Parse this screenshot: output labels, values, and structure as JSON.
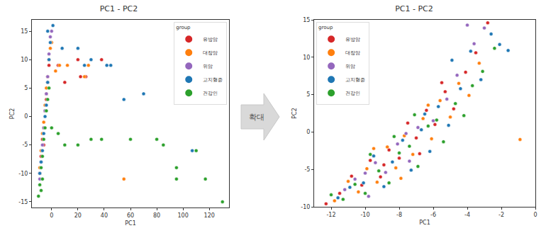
{
  "chart_data": [
    {
      "type": "scatter",
      "title": "PC1 - PC2",
      "x_label": "PC1",
      "y_label": "PC2",
      "legend_title": "group",
      "legend": "upper right",
      "grid": false,
      "marker": "circle",
      "xlim": [
        -15,
        135
      ],
      "xticks": [
        0,
        20,
        40,
        60,
        80,
        100,
        120
      ],
      "ylim": [
        -16,
        17
      ],
      "yticks": [
        -15,
        -10,
        -5,
        0,
        5,
        10,
        15
      ],
      "series": [
        {
          "name": "유방암",
          "color": "#d62728",
          "x": [
            -9,
            -8,
            -7,
            -6,
            -5,
            -4,
            -3,
            -2,
            -6,
            -4,
            5,
            10,
            20,
            38,
            22,
            26
          ],
          "y": [
            -10,
            -7,
            -4,
            -2,
            1,
            3,
            6,
            9,
            -5,
            4,
            9,
            6,
            10,
            10,
            7,
            7
          ]
        },
        {
          "name": "대장암",
          "color": "#ff7f0e",
          "x": [
            -9,
            -8,
            -7,
            -6,
            -5,
            -4,
            -3,
            -2,
            -1,
            0,
            3,
            6,
            12,
            25,
            28,
            55
          ],
          "y": [
            -9,
            -6,
            -3,
            -1,
            2,
            5,
            7,
            10,
            12,
            13,
            8,
            9,
            9,
            7,
            9,
            -11
          ]
        },
        {
          "name": "위암",
          "color": "#9467bd",
          "x": [
            -9,
            -8,
            -7,
            -6,
            -5,
            -4,
            -3,
            -2,
            -1,
            0
          ],
          "y": [
            -11,
            -8,
            -5,
            -2,
            1,
            4,
            7,
            11,
            14,
            15
          ]
        },
        {
          "name": "고지혈증",
          "color": "#1f77b4",
          "x": [
            -9,
            -8,
            -7,
            -6,
            -5,
            -4,
            -3,
            -2,
            -1,
            1,
            8,
            20,
            25,
            30,
            42,
            45,
            55,
            70,
            107,
            -3
          ],
          "y": [
            -10,
            -8,
            -6,
            -3,
            0,
            2,
            6,
            10,
            13,
            16,
            12,
            12,
            9,
            10,
            9,
            9,
            3,
            4,
            -6,
            15
          ]
        },
        {
          "name": "건강인",
          "color": "#2ca02c",
          "x": [
            -10,
            -9,
            -8,
            -7,
            -6,
            -5,
            -4,
            -3,
            -2,
            -8,
            -7,
            0,
            5,
            10,
            20,
            30,
            38,
            60,
            80,
            85,
            95,
            95,
            110,
            117,
            130
          ],
          "y": [
            -14,
            -12,
            -9,
            -7,
            -4,
            -2,
            1,
            3,
            5,
            -13,
            -11,
            -2,
            -3,
            -5,
            -5,
            -4,
            -4,
            -4,
            -4,
            -5,
            -9,
            -11,
            -6,
            -11,
            -15
          ]
        }
      ]
    },
    {
      "type": "scatter",
      "title": "PC1 - PC2",
      "x_label": "PC1",
      "y_label": "PC2",
      "legend_title": "group",
      "legend": "upper left",
      "grid": false,
      "marker": "circle",
      "xlim": [
        -13,
        0
      ],
      "xticks": [
        -12,
        -10,
        -8,
        -6,
        -4,
        -2,
        0
      ],
      "ylim": [
        -10,
        15
      ],
      "yticks": [
        -10,
        -5,
        0,
        5,
        10,
        15
      ],
      "series": [
        {
          "name": "유방암",
          "color": "#d62728",
          "x": [
            -12.3,
            -11.5,
            -10.8,
            -10.2,
            -9.7,
            -9.1,
            -8.6,
            -8.0,
            -7.5,
            -7.0,
            -6.4,
            -5.9,
            -5.3,
            -4.8,
            -4.1,
            -3.5,
            -2.8,
            -6.8,
            -8.9,
            -5.5
          ],
          "y": [
            -9.6,
            -8.2,
            -5.9,
            -7.1,
            -3.8,
            -6.0,
            -2.4,
            -3.5,
            1.2,
            -0.8,
            2.9,
            1.0,
            5.4,
            3.1,
            8.0,
            10.6,
            14.6,
            -2.9,
            -4.4,
            6.6
          ]
        },
        {
          "name": "대장암",
          "color": "#ff7f0e",
          "x": [
            -11.8,
            -11.0,
            -10.4,
            -9.9,
            -9.3,
            -8.7,
            -8.2,
            -7.7,
            -7.2,
            -6.6,
            -6.1,
            -5.6,
            -5.0,
            -4.5,
            -3.9,
            -3.3,
            -0.9,
            -7.9,
            -6.3,
            -9.5
          ],
          "y": [
            -9.2,
            -6.6,
            -8.0,
            -4.9,
            -6.7,
            -2.0,
            -4.8,
            -0.5,
            -3.0,
            1.8,
            -0.9,
            4.2,
            2.0,
            6.5,
            4.9,
            9.2,
            -1.0,
            -6.2,
            3.6,
            -2.2
          ]
        },
        {
          "name": "위암",
          "color": "#9467bd",
          "x": [
            -11.2,
            -10.6,
            -10.0,
            -9.4,
            -8.8,
            -8.1,
            -7.4,
            -6.9,
            -6.0,
            -5.2,
            -4.6,
            -4.0,
            -3.6,
            -3.0,
            -7.6,
            -9.8
          ],
          "y": [
            -7.7,
            -6.3,
            -5.5,
            -4.1,
            -5.4,
            -1.6,
            -3.9,
            0.6,
            1.5,
            4.4,
            7.6,
            14.3,
            11.8,
            13.9,
            -0.2,
            -8.6
          ]
        },
        {
          "name": "고지혈증",
          "color": "#1f77b4",
          "x": [
            -11.6,
            -10.9,
            -10.1,
            -9.5,
            -8.9,
            -8.4,
            -7.8,
            -7.3,
            -6.7,
            -6.2,
            -5.7,
            -5.1,
            -4.4,
            -3.8,
            -3.2,
            -2.6,
            -2.1,
            -1.6,
            -4.9,
            -6.5
          ],
          "y": [
            -8.8,
            -7.4,
            -6.8,
            -3.2,
            -7.3,
            -4.0,
            -1.1,
            -5.1,
            0.3,
            -2.6,
            3.4,
            0.9,
            5.8,
            10.8,
            7.0,
            13.1,
            11.7,
            10.9,
            9.6,
            2.4
          ]
        },
        {
          "name": "건강인",
          "color": "#2ca02c",
          "x": [
            -12.0,
            -11.3,
            -10.6,
            -10.0,
            -9.2,
            -8.6,
            -8.0,
            -7.4,
            -6.9,
            -6.3,
            -5.8,
            -5.4,
            -4.7,
            -4.2,
            -3.7,
            -3.1,
            -2.4,
            -8.3,
            -7.1,
            -9.7
          ],
          "y": [
            -8.4,
            -9.0,
            -7.0,
            -8.2,
            -5.2,
            -6.8,
            -2.8,
            -1.9,
            -4.6,
            0.8,
            1.6,
            -1.3,
            3.8,
            2.2,
            6.2,
            8.1,
            11.2,
            -0.6,
            2.3,
            -3.0
          ]
        }
      ]
    }
  ],
  "annotations": [
    "확대"
  ]
}
